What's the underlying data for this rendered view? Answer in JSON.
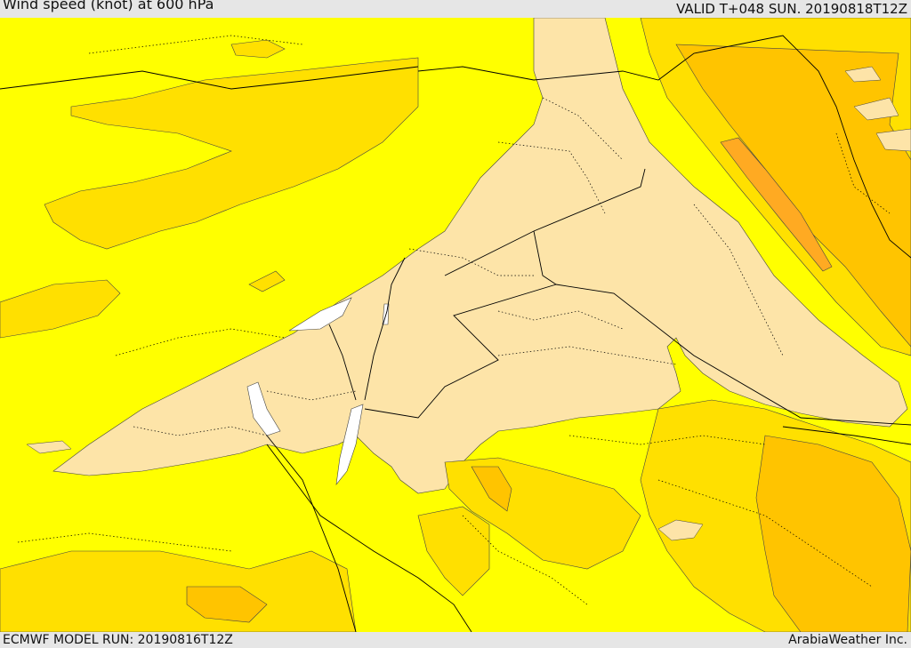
{
  "header": {
    "title": "Wind speed (knot) at 600 hPa",
    "valid": "VALID T+048 SUN. 20190818T12Z"
  },
  "footer": {
    "model_run": "ECMWF MODEL RUN: 20190816T12Z",
    "credit": "ArabiaWeather Inc."
  },
  "colors": {
    "level_low": "#fde4a8",
    "level_1": "#ffff00",
    "level_2": "#ffe000",
    "level_3": "#ffc400",
    "level_4": "#ffaa22",
    "water_gap": "#ffffff",
    "border": "#000000"
  }
}
